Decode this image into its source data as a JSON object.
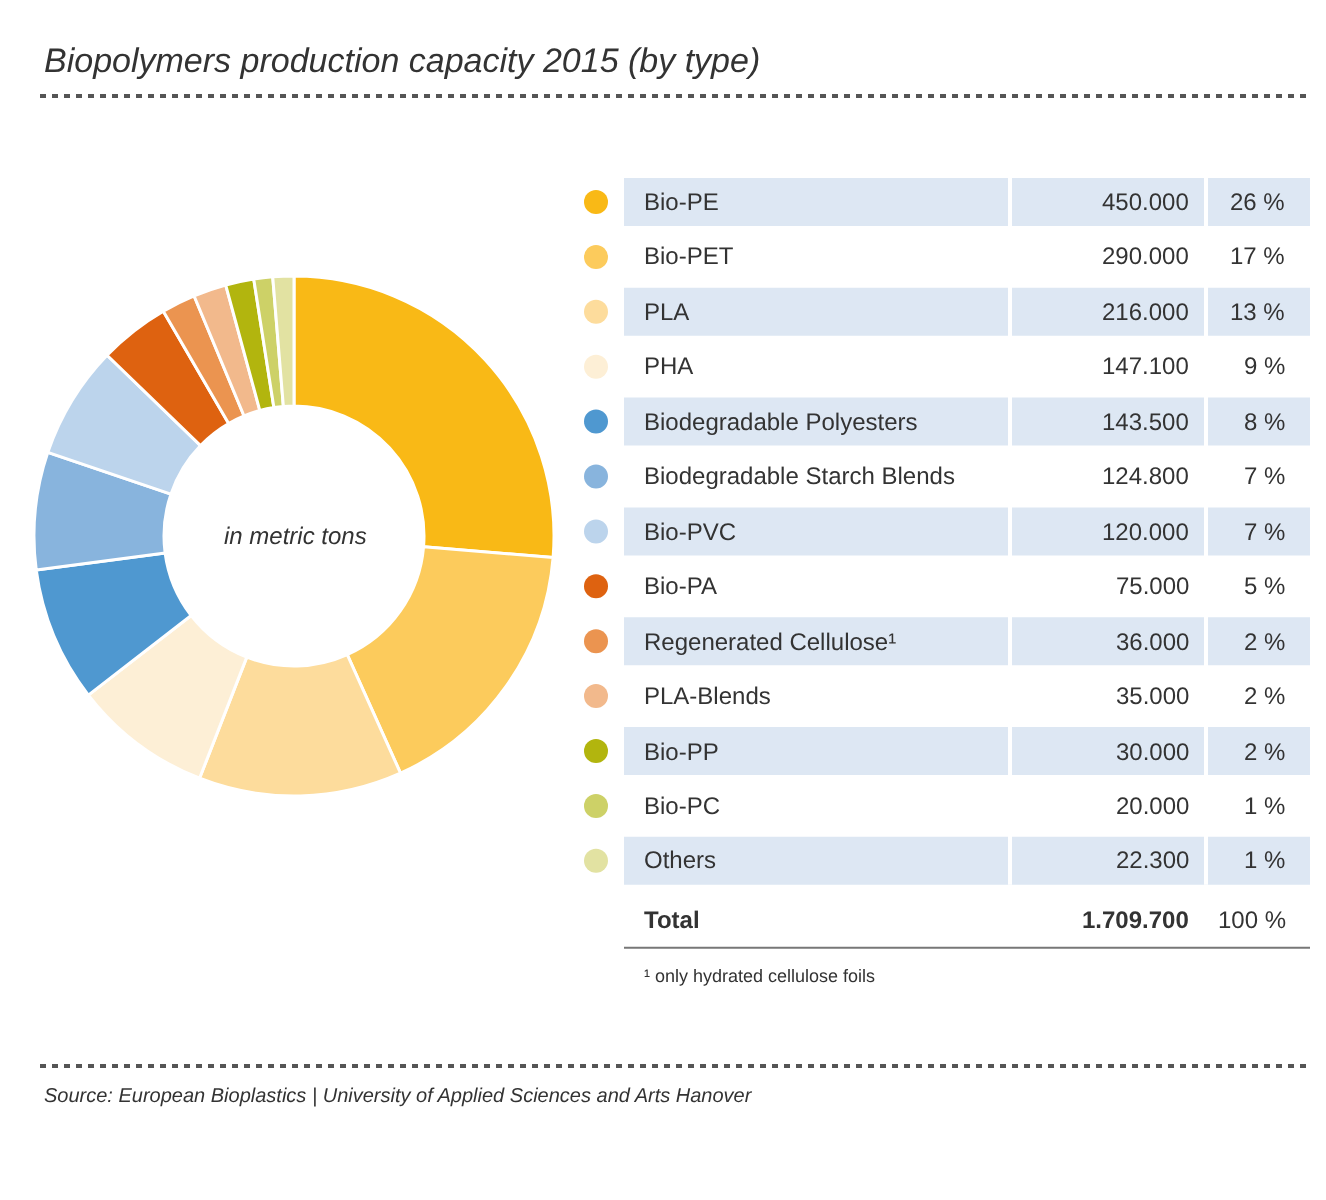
{
  "chart_data": {
    "type": "donut",
    "title": "Biopolymers production capacity 2015 (by type)",
    "categories": [
      "Bio-PE",
      "Bio-PET",
      "PLA",
      "PHA",
      "Biodegradable Polyesters",
      "Biodegradable Starch Blends",
      "Bio-PVC",
      "Bio-PA",
      "Regenerated Cellulose¹",
      "PLA-Blends",
      "Bio-PP",
      "Bio-PC",
      "Others"
    ],
    "values": [
      450000,
      290000,
      216000,
      147100,
      143500,
      124800,
      120000,
      75000,
      36000,
      35000,
      30000,
      20000,
      22300
    ],
    "value_labels": [
      "450.000",
      "290.000",
      "216.000",
      "147.100",
      "143.500",
      "124.800",
      "120.000",
      "75.000",
      "36.000",
      "35.000",
      "30.000",
      "20.000",
      "22.300"
    ],
    "colors": [
      "#f9b916",
      "#fccb5c",
      "#fddc9c",
      "#fdefd6",
      "#4f98d0",
      "#88b4dd",
      "#bcd4ec",
      "#de6210",
      "#eb9450",
      "#f2b98c",
      "#b2b50e",
      "#cdd167",
      "#e2e2a2"
    ],
    "annotations": [
      "in metric tons",
      "26 %",
      "17 %",
      "13 %",
      "9 %",
      "8 %",
      "7 %",
      "7 %",
      "5 %",
      "2 %",
      "2 %",
      "2 %",
      "1 %",
      "1 %",
      "Total",
      "1.709.700",
      "100 %",
      "¹ only hydrated cellulose foils",
      "Source: European Bioplastics | University of Applied Sciences and Arts Hanover"
    ],
    "legend": "right"
  }
}
